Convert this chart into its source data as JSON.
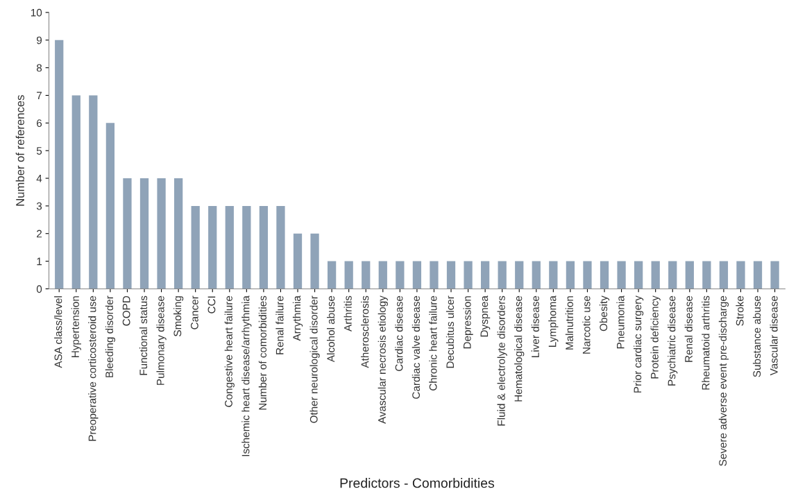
{
  "chart_data": {
    "type": "bar",
    "categories": [
      "ASA class/level",
      "Hypertension",
      "Preoperative corticosteroid use",
      "Bleeding disorder",
      "COPD",
      "Functional status",
      "Pulmonary disease",
      "Smoking",
      "Cancer",
      "CCI",
      "Congestive heart failure",
      "Ischemic heart disease/arrhythmia",
      "Number of comorbidities",
      "Renal failure",
      "Arrythmia",
      "Other neurological disorder",
      "Alcohol abuse",
      "Arthritis",
      "Atherosclerosis",
      "Avascular necrosis etiology",
      "Cardiac disease",
      "Cardiac valve disease",
      "Chronic heart failure",
      "Decubitus ulcer",
      "Depression",
      "Dyspnea",
      "Fluid & electrolyte disorders",
      "Hematological disease",
      "Liver disease",
      "Lymphoma",
      "Malnutrition",
      "Narcotic use",
      "Obesity",
      "Pneumonia",
      "Prior cardiac surgery",
      "Protein deficiency",
      "Psychiatric disease",
      "Renal disease",
      "Rheumatoid arthritis",
      "Severe adverse event pre-discharge",
      "Stroke",
      "Substance abuse",
      "Vascular disease"
    ],
    "values": [
      9,
      7,
      7,
      6,
      4,
      4,
      4,
      4,
      3,
      3,
      3,
      3,
      3,
      3,
      2,
      2,
      1,
      1,
      1,
      1,
      1,
      1,
      1,
      1,
      1,
      1,
      1,
      1,
      1,
      1,
      1,
      1,
      1,
      1,
      1,
      1,
      1,
      1,
      1,
      1,
      1,
      1,
      1
    ],
    "color": "#8fa3b8",
    "xlabel": "Predictors - Comorbidities",
    "ylabel": "Number of references",
    "ylim": [
      0,
      10
    ],
    "yticks": [
      0,
      1,
      2,
      3,
      4,
      5,
      6,
      7,
      8,
      9,
      10
    ],
    "grid": false,
    "legend": false
  }
}
